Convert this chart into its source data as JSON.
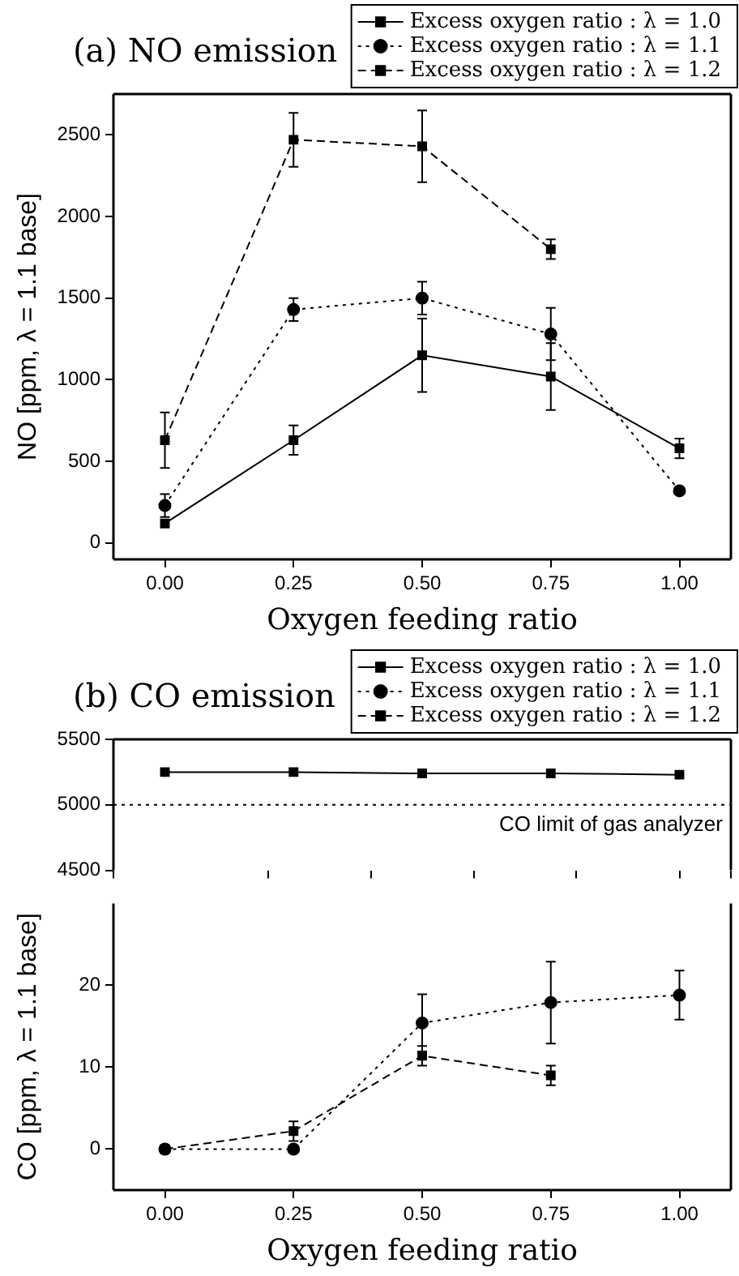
{
  "chart_data": [
    {
      "type": "line",
      "title": "(a) NO emission",
      "xlabel": "Oxygen feeding ratio",
      "ylabel": "NO [ppm, λ = 1.1 base]",
      "x": [
        0,
        0.25,
        0.5,
        0.75,
        1
      ],
      "series": [
        {
          "name": "Excess oxygen ratio : λ = 1.0",
          "color": "#000000",
          "marker": "square",
          "line_style": "solid",
          "values": [
            120,
            630,
            1150,
            1020,
            580
          ],
          "errors": [
            null,
            90,
            225,
            205,
            60
          ]
        },
        {
          "name": "Excess oxygen ratio : λ = 1.1",
          "color": "#000000",
          "marker": "circle",
          "line_style": "dotted",
          "values": [
            230,
            1430,
            1500,
            1280,
            320
          ],
          "errors": [
            70,
            70,
            100,
            160,
            null
          ]
        },
        {
          "name": "Excess oxygen ratio : λ = 1.2",
          "color": "#000000",
          "marker": "square",
          "line_style": "dashed",
          "values": [
            630,
            2470,
            2430,
            1800,
            null
          ],
          "errors": [
            170,
            165,
            220,
            60,
            null
          ]
        }
      ],
      "xlim": [
        -0.1,
        1.1
      ],
      "xticks": [
        {
          "value": 0,
          "label": "0.00"
        },
        {
          "value": 0.25,
          "label": "0.25"
        },
        {
          "value": 0.5,
          "label": "0.50"
        },
        {
          "value": 0.75,
          "label": "0.75"
        },
        {
          "value": 1,
          "label": "1.00"
        }
      ],
      "ylim": [
        -100,
        2750
      ],
      "yticks": [
        0,
        500,
        1000,
        1500,
        2000,
        2500
      ],
      "grid": false,
      "legend": "top right"
    },
    {
      "type": "line",
      "title": "(b) CO emission",
      "x": [
        0,
        0.25,
        0.5,
        0.75,
        1
      ],
      "series": [
        {
          "name": "Excess oxygen ratio : λ = 1.0",
          "color": "#000000",
          "marker": "square",
          "line_style": "solid",
          "values": [
            5250,
            5250,
            5240,
            5240,
            5230
          ]
        },
        {
          "name": "Excess oxygen ratio : λ = 1.1",
          "color": "#000000",
          "marker": "circle",
          "line_style": "dotted",
          "values": [
            null,
            null,
            null,
            null,
            null
          ]
        },
        {
          "name": "Excess oxygen ratio : λ = 1.2",
          "color": "#000000",
          "marker": "square",
          "line_style": "dashed",
          "values": [
            null,
            null,
            null,
            null,
            null
          ]
        }
      ],
      "xlim": [
        -0.1,
        1.1
      ],
      "ylim": [
        4500,
        5500
      ],
      "yticks": [
        4500,
        5000,
        5500
      ],
      "grid": false,
      "legend": "top right",
      "tick_labels": "y",
      "ref_lines": [
        {
          "axis": "y",
          "value": 5000,
          "label": "CO limit of gas analyzer",
          "line_style": "dotted"
        }
      ]
    },
    {
      "type": "line",
      "xlabel": "Oxygen feeding ratio",
      "ylabel": "CO [ppm, λ = 1.1 base]",
      "x": [
        0,
        0.25,
        0.5,
        0.75,
        1
      ],
      "series": [
        {
          "color": "#000000",
          "marker": "circle",
          "line_style": "dotted",
          "values": [
            0,
            0,
            15.4,
            17.9,
            18.8
          ],
          "errors": [
            null,
            null,
            3.5,
            5,
            3
          ]
        },
        {
          "color": "#000000",
          "marker": "square",
          "line_style": "dashed",
          "values": [
            0,
            2.2,
            11.4,
            9,
            null
          ],
          "errors": [
            null,
            1.2,
            1.2,
            1.2,
            null
          ]
        }
      ],
      "xlim": [
        -0.1,
        1.1
      ],
      "xticks": [
        {
          "value": 0,
          "label": "0.00"
        },
        {
          "value": 0.25,
          "label": "0.25"
        },
        {
          "value": 0.5,
          "label": "0.50"
        },
        {
          "value": 0.75,
          "label": "0.75"
        },
        {
          "value": 1,
          "label": "1.00"
        }
      ],
      "ylim": [
        -5,
        30
      ],
      "yticks": [
        0,
        10,
        20
      ],
      "grid": false,
      "legend": false
    }
  ]
}
